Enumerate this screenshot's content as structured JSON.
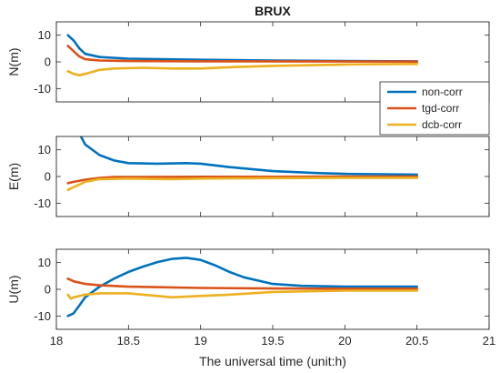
{
  "chart_data": {
    "type": "line",
    "title": "BRUX",
    "xlabel": "The universal time (unit:h)",
    "xlim": [
      18,
      21
    ],
    "x_ticks": [
      "18",
      "18.5",
      "19",
      "19.5",
      "20",
      "20.5",
      "21"
    ],
    "legend": {
      "placement": "right, between top and middle panel",
      "entries": [
        "non-corr",
        "tgd-corr",
        "dcb-corr"
      ]
    },
    "colors": {
      "non-corr": "#0072BD",
      "tgd-corr": "#D95319",
      "dcb-corr": "#EDB120"
    },
    "panels": [
      {
        "ylabel": "N(m)",
        "ylim": [
          -15,
          15
        ],
        "y_ticks": [
          "10",
          "0",
          "-10"
        ],
        "series": [
          {
            "name": "non-corr",
            "x": [
              18.08,
              18.12,
              18.16,
              18.2,
              18.3,
              18.5,
              19.0,
              19.5,
              20.0,
              20.5
            ],
            "values": [
              10,
              8,
              5,
              3,
              1.8,
              1.2,
              0.8,
              0.5,
              0.3,
              0.2
            ]
          },
          {
            "name": "tgd-corr",
            "x": [
              18.08,
              18.12,
              18.16,
              18.2,
              18.3,
              18.5,
              19.0,
              20.5
            ],
            "values": [
              6,
              4,
              2,
              1,
              0.5,
              0.3,
              0.2,
              0.1
            ]
          },
          {
            "name": "dcb-corr",
            "x": [
              18.08,
              18.12,
              18.16,
              18.2,
              18.3,
              18.4,
              18.6,
              18.8,
              19.0,
              19.2,
              19.5,
              20.0,
              20.5
            ],
            "values": [
              -3.5,
              -4.5,
              -5,
              -4.5,
              -3,
              -2.5,
              -2.2,
              -2.5,
              -2.5,
              -2,
              -1.5,
              -1,
              -0.8
            ]
          }
        ]
      },
      {
        "ylabel": "E(m)",
        "ylim": [
          -15,
          15
        ],
        "y_ticks": [
          "10",
          "0",
          "-10"
        ],
        "series": [
          {
            "name": "non-corr",
            "x": [
              18.17,
              18.2,
              18.3,
              18.4,
              18.5,
              18.7,
              18.9,
              19.0,
              19.2,
              19.5,
              19.8,
              20.0,
              20.5
            ],
            "values": [
              15,
              12,
              8,
              6,
              5,
              4.8,
              5,
              4.8,
              3.5,
              2,
              1.3,
              1,
              0.7
            ]
          },
          {
            "name": "tgd-corr",
            "x": [
              18.08,
              18.12,
              18.2,
              18.3,
              18.4,
              18.6,
              19.0,
              19.5,
              20.0,
              20.5
            ],
            "values": [
              -2.5,
              -2,
              -1.2,
              -0.5,
              -0.2,
              -0.2,
              -0.1,
              -0.1,
              0,
              0
            ]
          },
          {
            "name": "dcb-corr",
            "x": [
              18.08,
              18.12,
              18.16,
              18.2,
              18.3,
              18.5,
              18.8,
              19.0,
              19.5,
              20.0,
              20.5
            ],
            "values": [
              -5,
              -4,
              -3,
              -2,
              -1,
              -0.8,
              -1,
              -0.8,
              -0.6,
              -0.5,
              -0.5
            ]
          }
        ]
      },
      {
        "ylabel": "U(m)",
        "ylim": [
          -15,
          15
        ],
        "y_ticks": [
          "10",
          "0",
          "-10"
        ],
        "series": [
          {
            "name": "non-corr",
            "x": [
              18.08,
              18.12,
              18.16,
              18.2,
              18.3,
              18.4,
              18.5,
              18.6,
              18.7,
              18.8,
              18.9,
              19.0,
              19.1,
              19.2,
              19.3,
              19.5,
              19.7,
              20.0,
              20.5
            ],
            "values": [
              -10,
              -9,
              -6,
              -3,
              1,
              4,
              6.5,
              8.5,
              10.2,
              11.4,
              11.8,
              11,
              9,
              6.5,
              4.5,
              2,
              1.3,
              1,
              1
            ]
          },
          {
            "name": "tgd-corr",
            "x": [
              18.08,
              18.12,
              18.2,
              18.3,
              18.5,
              19.0,
              19.5,
              20.0,
              20.5
            ],
            "values": [
              4,
              3,
              2,
              1.5,
              1,
              0.5,
              0.3,
              0.2,
              0.2
            ]
          },
          {
            "name": "dcb-corr",
            "x": [
              18.08,
              18.1,
              18.12,
              18.16,
              18.2,
              18.3,
              18.5,
              18.7,
              18.8,
              19.0,
              19.2,
              19.5,
              20.0,
              20.5
            ],
            "values": [
              -2,
              -3.5,
              -3,
              -2.5,
              -2,
              -1.5,
              -1.5,
              -2.5,
              -3,
              -2.5,
              -2,
              -1,
              -0.5,
              -0.5
            ]
          }
        ]
      }
    ]
  }
}
